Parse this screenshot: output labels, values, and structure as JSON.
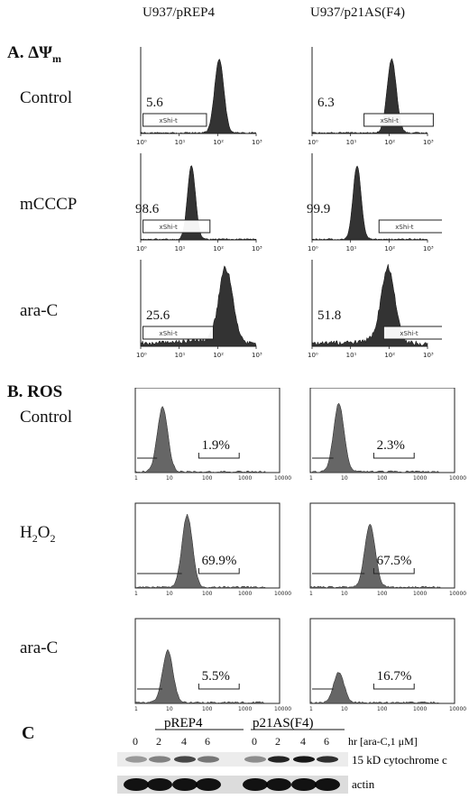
{
  "columns": [
    "U937/pREP4",
    "U937/p21AS(F4)"
  ],
  "sectionA": {
    "label_prefix": "A. ΔΨ",
    "label_sub": "m",
    "rows": [
      "Control",
      "mCCCP",
      "ara-C"
    ],
    "values": [
      [
        "5.6",
        "6.3"
      ],
      [
        "98.6",
        "99.9"
      ],
      [
        "25.6",
        "51.8"
      ]
    ],
    "gate_label": "xShi-t",
    "x_ticks": [
      "10⁰",
      "10¹",
      "10²",
      "10³"
    ]
  },
  "sectionB": {
    "label": "B. ROS",
    "rows": [
      "Control",
      "H2O2",
      "ara-C"
    ],
    "h2o2": {
      "base": "H",
      "sub1": "2",
      "mid": "O",
      "sub2": "2"
    },
    "values": [
      [
        "1.9%",
        "2.3%"
      ],
      [
        "69.9%",
        "67.5%"
      ],
      [
        "5.5%",
        "16.7%"
      ]
    ],
    "x_ticks": [
      "1",
      "10",
      "100",
      "1000",
      "10000"
    ]
  },
  "sectionC": {
    "label": "C",
    "group1": "pREP4",
    "group2": "p21AS(F4)",
    "lane_labels": [
      "0",
      "2",
      "4",
      "6",
      "0",
      "2",
      "4",
      "6"
    ],
    "time_label": "hr [ara-C,1 μM]",
    "band1_label": "15 kD cytochrome c",
    "band2_label": "actin"
  }
}
